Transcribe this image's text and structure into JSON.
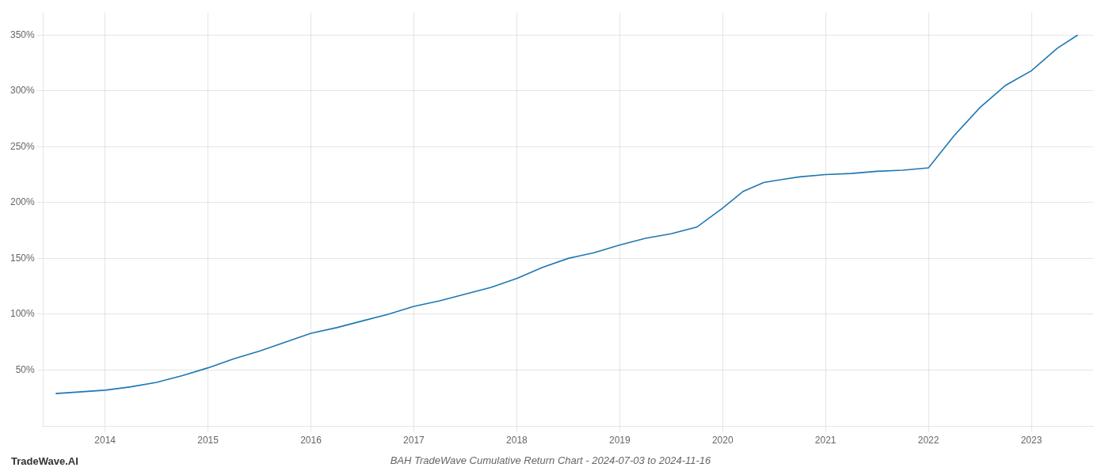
{
  "chart_data": {
    "type": "line",
    "title": "BAH TradeWave Cumulative Return Chart - 2024-07-03 to 2024-11-16",
    "annotations": [
      "TradeWave.AI"
    ],
    "x": [
      2013.52,
      2014.0,
      2014.25,
      2014.5,
      2014.75,
      2015.0,
      2015.25,
      2015.5,
      2015.75,
      2016.0,
      2016.25,
      2016.5,
      2016.75,
      2017.0,
      2017.25,
      2017.5,
      2017.75,
      2018.0,
      2018.25,
      2018.5,
      2018.6,
      2018.75,
      2019.0,
      2019.25,
      2019.5,
      2019.75,
      2020.0,
      2020.2,
      2020.4,
      2020.6,
      2020.75,
      2021.0,
      2021.25,
      2021.5,
      2021.75,
      2022.0,
      2022.25,
      2022.5,
      2022.75,
      2023.0,
      2023.25,
      2023.45
    ],
    "values": [
      29,
      32,
      35,
      39,
      45,
      52,
      60,
      67,
      75,
      83,
      88,
      94,
      100,
      107,
      112,
      118,
      124,
      132,
      142,
      150,
      152,
      155,
      162,
      168,
      172,
      178,
      195,
      210,
      218,
      221,
      223,
      225,
      226,
      228,
      229,
      231,
      260,
      285,
      305,
      318,
      338,
      350
    ],
    "color": "#1f77b4",
    "xlim": [
      2013.4,
      2023.6
    ],
    "xticks": [
      2014,
      2015,
      2016,
      2017,
      2018,
      2019,
      2020,
      2021,
      2022,
      2023
    ],
    "ylim": [
      0,
      370
    ],
    "yticks": [
      {
        "value": 50,
        "label": "50%"
      },
      {
        "value": 100,
        "label": "100%"
      },
      {
        "value": 150,
        "label": "150%"
      },
      {
        "value": 200,
        "label": "200%"
      },
      {
        "value": 250,
        "label": "250%"
      },
      {
        "value": 300,
        "label": "300%"
      },
      {
        "value": 350,
        "label": "350%"
      }
    ],
    "grid": true
  }
}
